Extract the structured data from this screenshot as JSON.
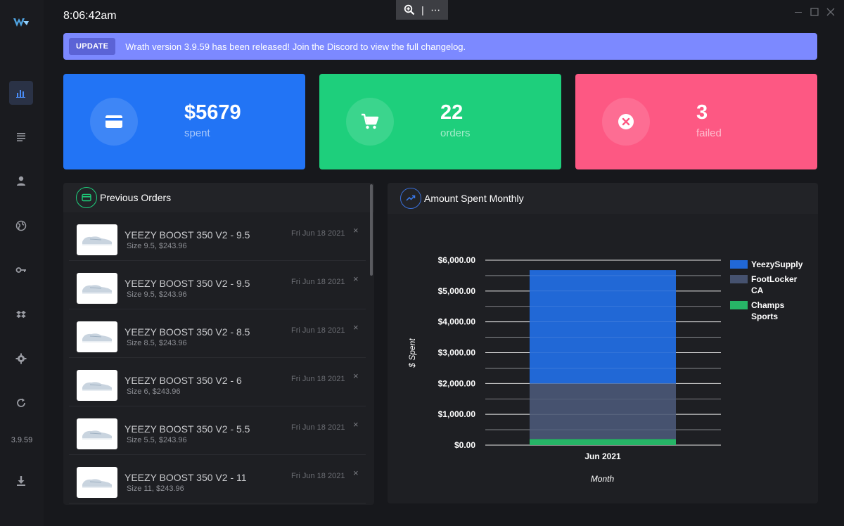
{
  "app": {
    "version": "3.9.59"
  },
  "clock": "8:06:42am",
  "zoom_bar": {
    "zoom_icon": "zoom-in-icon",
    "separator": "|",
    "more": "⋯"
  },
  "banner": {
    "badge": "UPDATE",
    "message": "Wrath version 3.9.59 has been released! Join the Discord to view the full changelog.",
    "color": "#7c89ff"
  },
  "stats": [
    {
      "value": "$5679",
      "label": "spent",
      "icon": "credit-card-icon",
      "color": "#2274f5"
    },
    {
      "value": "22",
      "label": "orders",
      "icon": "cart-icon",
      "color": "#1ecf7c"
    },
    {
      "value": "3",
      "label": "failed",
      "icon": "close-circle-icon",
      "color": "#fd5883"
    }
  ],
  "orders_panel": {
    "title": "Previous Orders",
    "items": [
      {
        "name": "YEEZY BOOST 350 V2 - 9.5",
        "detail": "Size 9.5, $243.96",
        "date": "Fri Jun 18 2021"
      },
      {
        "name": "YEEZY BOOST 350 V2 - 9.5",
        "detail": "Size 9.5, $243.96",
        "date": "Fri Jun 18 2021"
      },
      {
        "name": "YEEZY BOOST 350 V2 - 8.5",
        "detail": "Size 8.5, $243.96",
        "date": "Fri Jun 18 2021"
      },
      {
        "name": "YEEZY BOOST 350 V2 - 6",
        "detail": "Size 6, $243.96",
        "date": "Fri Jun 18 2021"
      },
      {
        "name": "YEEZY BOOST 350 V2 - 5.5",
        "detail": "Size 5.5, $243.96",
        "date": "Fri Jun 18 2021"
      },
      {
        "name": "YEEZY BOOST 350 V2 - 11",
        "detail": "Size 11, $243.96",
        "date": "Fri Jun 18 2021"
      }
    ],
    "remove_glyph": "×"
  },
  "chart_panel": {
    "title": "Amount Spent Monthly"
  },
  "chart_data": {
    "type": "bar",
    "stacked": true,
    "categories": [
      "Jun 2021"
    ],
    "series": [
      {
        "name": "Champs Sports",
        "values": [
          200
        ],
        "color": "#27b567"
      },
      {
        "name": "FootLocker CA",
        "values": [
          1800
        ],
        "color": "#46526f"
      },
      {
        "name": "YeezySupply",
        "values": [
          3679
        ],
        "color": "#2168d6"
      }
    ],
    "legend_order": [
      "YeezySupply",
      "FootLocker CA",
      "Champs Sports"
    ],
    "legend_lines": {
      "YeezySupply": [
        "YeezySupply"
      ],
      "FootLocker CA": [
        "FootLocker",
        "CA"
      ],
      "Champs Sports": [
        "Champs",
        "Sports"
      ]
    },
    "xlabel": "Month",
    "ylabel": "$ Spent",
    "ylim": [
      0,
      6000
    ],
    "yticks": [
      0,
      1000,
      2000,
      3000,
      4000,
      5000,
      6000
    ],
    "ytick_labels": [
      "$0.00",
      "$1,000.00",
      "$2,000.00",
      "$3,000.00",
      "$4,000.00",
      "$5,000.00",
      "$6,000.00"
    ],
    "grid": true,
    "legend_position": "right"
  },
  "sidebar": {
    "items": [
      {
        "icon": "bar-chart-icon",
        "active": true
      },
      {
        "icon": "list-icon",
        "active": false
      },
      {
        "icon": "user-icon",
        "active": false
      },
      {
        "icon": "globe-icon",
        "active": false
      },
      {
        "icon": "key-icon",
        "active": false
      },
      {
        "icon": "dropbox-icon",
        "active": false
      },
      {
        "icon": "gear-icon",
        "active": false
      },
      {
        "icon": "refresh-icon",
        "active": false
      },
      {
        "icon": "download-icon",
        "active": false
      }
    ]
  }
}
